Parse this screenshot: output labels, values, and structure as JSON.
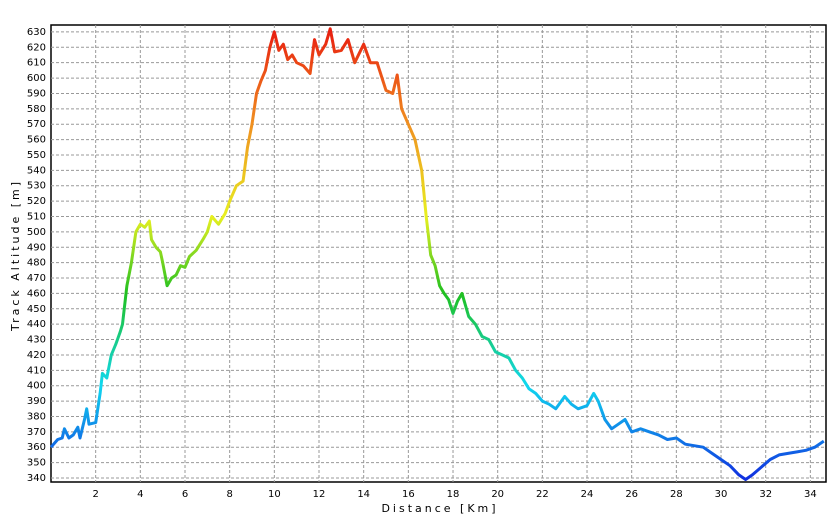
{
  "chart_data": {
    "type": "line",
    "x_label": "Distance [Km]",
    "y_label": "Track Altitude [m]",
    "x": [
      0,
      0.3,
      0.5,
      0.6,
      0.8,
      1.0,
      1.2,
      1.3,
      1.5,
      1.6,
      1.7,
      2.0,
      2.2,
      2.3,
      2.5,
      2.7,
      2.9,
      3.1,
      3.2,
      3.4,
      3.6,
      3.8,
      4.0,
      4.2,
      4.4,
      4.5,
      4.7,
      4.9,
      5.0,
      5.2,
      5.4,
      5.6,
      5.8,
      6.0,
      6.2,
      6.5,
      6.8,
      7.0,
      7.2,
      7.5,
      7.8,
      8.0,
      8.3,
      8.6,
      8.8,
      9.0,
      9.2,
      9.4,
      9.6,
      9.8,
      10.0,
      10.2,
      10.4,
      10.6,
      10.8,
      11.0,
      11.3,
      11.6,
      11.8,
      12.0,
      12.3,
      12.5,
      12.7,
      13.0,
      13.3,
      13.6,
      14.0,
      14.3,
      14.6,
      15.0,
      15.3,
      15.5,
      15.7,
      16.0,
      16.3,
      16.6,
      16.8,
      17.0,
      17.2,
      17.4,
      17.6,
      17.8,
      18.0,
      18.2,
      18.4,
      18.7,
      19.0,
      19.3,
      19.6,
      19.9,
      20.2,
      20.5,
      20.8,
      21.1,
      21.4,
      21.7,
      22.0,
      22.3,
      22.6,
      23.0,
      23.3,
      23.6,
      24.0,
      24.3,
      24.5,
      24.8,
      25.1,
      25.4,
      25.7,
      26.0,
      26.4,
      26.8,
      27.2,
      27.6,
      28.0,
      28.4,
      28.8,
      29.2,
      29.6,
      30.0,
      30.4,
      30.8,
      31.1,
      31.4,
      31.8,
      32.2,
      32.6,
      33.0,
      33.4,
      33.8,
      34.2,
      34.6
    ],
    "values": [
      360,
      365,
      366,
      372,
      366,
      368,
      373,
      366,
      378,
      385,
      375,
      376,
      395,
      408,
      405,
      420,
      427,
      435,
      440,
      465,
      480,
      500,
      505,
      503,
      507,
      495,
      490,
      487,
      480,
      465,
      470,
      472,
      478,
      477,
      484,
      488,
      495,
      500,
      510,
      505,
      512,
      520,
      530,
      533,
      555,
      570,
      590,
      598,
      605,
      620,
      630,
      618,
      622,
      612,
      615,
      610,
      608,
      603,
      625,
      615,
      622,
      632,
      617,
      618,
      625,
      610,
      622,
      610,
      610,
      592,
      590,
      602,
      580,
      570,
      560,
      540,
      510,
      485,
      478,
      465,
      460,
      456,
      447,
      455,
      460,
      445,
      440,
      432,
      430,
      422,
      420,
      418,
      410,
      405,
      398,
      395,
      390,
      388,
      385,
      393,
      388,
      385,
      387,
      395,
      390,
      378,
      372,
      375,
      378,
      370,
      372,
      370,
      368,
      365,
      366,
      362,
      361,
      360,
      356,
      352,
      348,
      342,
      339,
      342,
      347,
      352,
      355,
      356,
      357,
      358,
      360,
      364
    ],
    "color_scale": {
      "values": [
        340,
        400,
        460,
        510,
        570,
        630
      ],
      "colors": [
        "#1030e0",
        "#10d8f0",
        "#20c020",
        "#e8f020",
        "#f09020",
        "#e82010"
      ]
    },
    "xlim": [
      0,
      34.7
    ],
    "ylim": [
      337.4,
      634.5
    ],
    "xticks": [
      2,
      4,
      6,
      8,
      10,
      12,
      14,
      16,
      18,
      20,
      22,
      24,
      26,
      28,
      30,
      32,
      34
    ],
    "yticks": [
      340,
      350,
      360,
      370,
      380,
      390,
      400,
      410,
      420,
      430,
      440,
      450,
      460,
      470,
      480,
      490,
      500,
      510,
      520,
      530,
      540,
      550,
      560,
      570,
      580,
      590,
      600,
      610,
      620,
      630
    ],
    "grid": true
  }
}
